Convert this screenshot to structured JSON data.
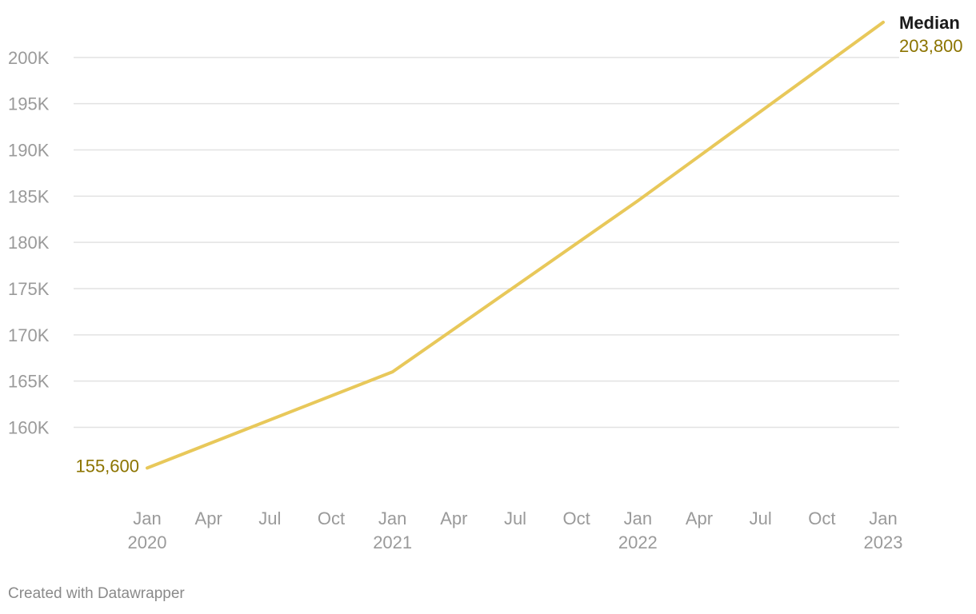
{
  "chart_data": {
    "type": "line",
    "title": "",
    "xlabel": "",
    "ylabel": "",
    "x": [
      "2020-01",
      "2021-01",
      "2022-01",
      "2023-01"
    ],
    "series": [
      {
        "name": "Median",
        "values": [
          155600,
          166000,
          184500,
          203800
        ],
        "color": "#e8c85a",
        "start_label": "155,600",
        "end_label": "203,800",
        "label_color": "#8c7400"
      }
    ],
    "y_ticks": [
      {
        "value": 160000,
        "label": "160K"
      },
      {
        "value": 165000,
        "label": "165K"
      },
      {
        "value": 170000,
        "label": "170K"
      },
      {
        "value": 175000,
        "label": "175K"
      },
      {
        "value": 180000,
        "label": "180K"
      },
      {
        "value": 185000,
        "label": "185K"
      },
      {
        "value": 190000,
        "label": "190K"
      },
      {
        "value": 195000,
        "label": "195K"
      },
      {
        "value": 200000,
        "label": "200K"
      }
    ],
    "x_ticks": [
      {
        "date": "2020-01",
        "month": "Jan",
        "year": "2020"
      },
      {
        "date": "2020-04",
        "month": "Apr",
        "year": ""
      },
      {
        "date": "2020-07",
        "month": "Jul",
        "year": ""
      },
      {
        "date": "2020-10",
        "month": "Oct",
        "year": ""
      },
      {
        "date": "2021-01",
        "month": "Jan",
        "year": "2021"
      },
      {
        "date": "2021-04",
        "month": "Apr",
        "year": ""
      },
      {
        "date": "2021-07",
        "month": "Jul",
        "year": ""
      },
      {
        "date": "2021-10",
        "month": "Oct",
        "year": ""
      },
      {
        "date": "2022-01",
        "month": "Jan",
        "year": "2022"
      },
      {
        "date": "2022-04",
        "month": "Apr",
        "year": ""
      },
      {
        "date": "2022-07",
        "month": "Jul",
        "year": ""
      },
      {
        "date": "2022-10",
        "month": "Oct",
        "year": ""
      },
      {
        "date": "2023-01",
        "month": "Jan",
        "year": "2023"
      }
    ],
    "xlim": [
      "2020-01",
      "2023-01"
    ],
    "ylim": [
      151400,
      205000
    ],
    "grid": true,
    "legend": "none"
  },
  "footer": {
    "credit": "Created with Datawrapper"
  }
}
